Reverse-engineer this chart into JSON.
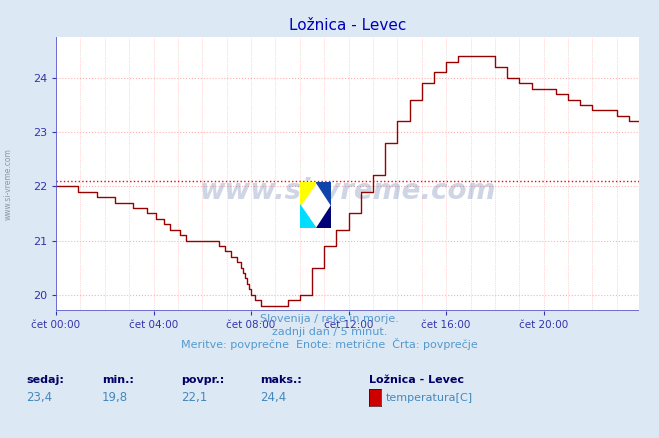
{
  "title": "Ložnica - Levec",
  "bg_color": "#dce9f5",
  "plot_bg_color": "#ffffff",
  "line_color": "#990000",
  "avg_line_color": "#ff0000",
  "avg_value": 22.1,
  "ylim": [
    19.7,
    24.75
  ],
  "yticks": [
    20,
    21,
    22,
    23,
    24
  ],
  "xlim": [
    0,
    287
  ],
  "xtick_positions": [
    0,
    48,
    96,
    144,
    192,
    240
  ],
  "xtick_labels": [
    "čet 00:00",
    "čet 04:00",
    "čet 08:00",
    "čet 12:00",
    "čet 16:00",
    "čet 20:00"
  ],
  "subtitle1": "Slovenija / reke in morje.",
  "subtitle2": "zadnji dan / 5 minut.",
  "subtitle3": "Meritve: povprečne  Enote: metrične  Črta: povprečje",
  "stat_labels": [
    "sedaj:",
    "min.:",
    "povpr.:",
    "maks.:"
  ],
  "stat_values": [
    "23,4",
    "19,8",
    "22,1",
    "24,4"
  ],
  "legend_title": "Ložnica - Levec",
  "legend_label": "temperatura[C]",
  "legend_color": "#cc0000",
  "watermark_text": "www.si-vreme.com",
  "ylabel_text": "www.si-vreme.com",
  "grid_color": "#ffb0b0",
  "tick_color": "#3333aa",
  "title_color": "#0000bb",
  "subtitle_color": "#5599cc",
  "stat_label_color": "#000066",
  "stat_value_color": "#4488bb",
  "spine_color": "#5555cc",
  "logo_colors": [
    "#ffff00",
    "#00ccff",
    "#000088",
    "#2244aa"
  ]
}
